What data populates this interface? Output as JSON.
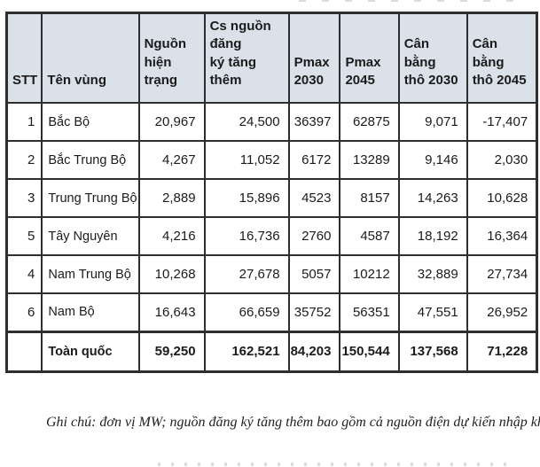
{
  "table": {
    "columns": [
      {
        "key": "stt",
        "label": "STT"
      },
      {
        "key": "region",
        "label": "Tên vùng"
      },
      {
        "key": "existing",
        "label": "Nguồn\nhiện trạng"
      },
      {
        "key": "registered",
        "label": "Cs nguồn đăng\nký tăng thêm"
      },
      {
        "key": "pmax2030",
        "label": "Pmax\n2030"
      },
      {
        "key": "pmax2045",
        "label": "Pmax\n2045"
      },
      {
        "key": "balance2030",
        "label": "Cân bằng\nthô 2030"
      },
      {
        "key": "balance2045",
        "label": "Cân bằng\nthô 2045"
      }
    ],
    "rows": [
      [
        "1",
        "Bắc Bộ",
        "20,967",
        "24,500",
        "36397",
        "62875",
        "9,071",
        "-17,407"
      ],
      [
        "2",
        "Bắc Trung Bộ",
        "4,267",
        "11,052",
        "6172",
        "13289",
        "9,146",
        "2,030"
      ],
      [
        "3",
        "Trung Trung Bộ",
        "2,889",
        "15,896",
        "4523",
        "8157",
        "14,263",
        "10,628"
      ],
      [
        "5",
        "Tây Nguyên",
        "4,216",
        "16,736",
        "2760",
        "4587",
        "18,192",
        "16,364"
      ],
      [
        "4",
        "Nam Trung Bộ",
        "10,268",
        "27,678",
        "5057",
        "10212",
        "32,889",
        "27,734"
      ],
      [
        "6",
        "Nam Bộ",
        "16,643",
        "66,659",
        "35752",
        "56351",
        "47,551",
        "26,952"
      ]
    ],
    "total_row": [
      "",
      "Toàn quốc",
      "59,250",
      "162,521",
      "84,203",
      "150,544",
      "137,568",
      "71,228"
    ]
  },
  "note": "Ghi chú: đơn vị MW; nguồn đăng ký tăng thêm bao gồm cả nguồn điện dự kiến nhập khẩu",
  "colors": {
    "header_bg": "#dbe1e9",
    "border": "#2e2e2e",
    "text": "#1b1b1b"
  }
}
